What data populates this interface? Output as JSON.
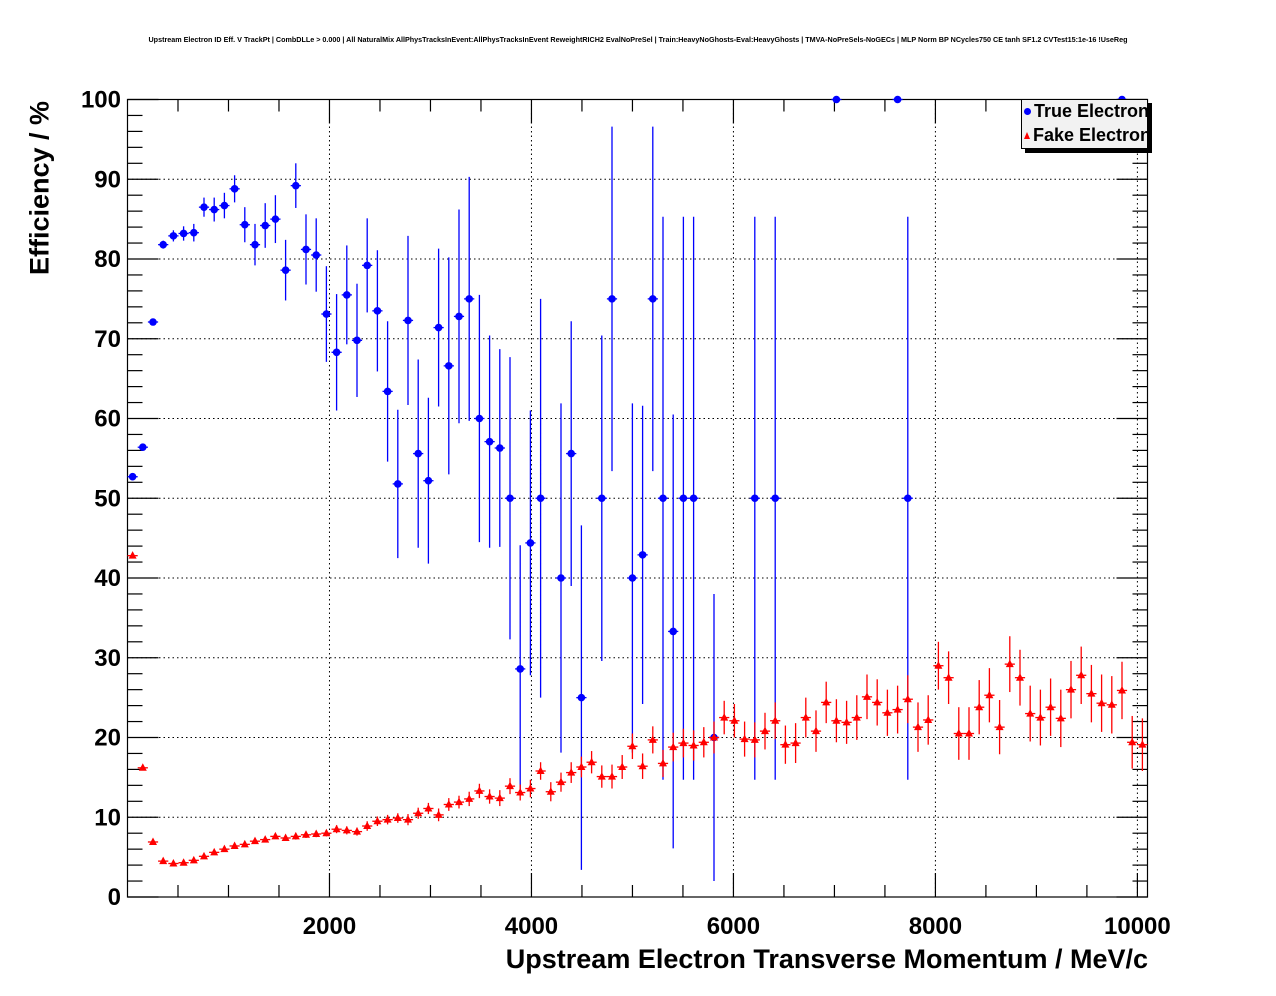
{
  "chart_data": {
    "type": "scatter",
    "title": "Upstream Electron ID Eff. V TrackPt | CombDLLe > 0.000 | All NaturalMix AllPhysTracksInEvent:AllPhysTracksInEvent ReweightRICH2 EvalNoPreSel | Train:HeavyNoGhosts-Eval:HeavyGhosts | TMVA-NoPreSels-NoGECs | MLP Norm BP NCycles750 CE tanh SF1.2 CVTest15:1e-16 !UseReg",
    "xlabel": "Upstream Electron Transverse Momentum / MeV/c",
    "ylabel": "Efficiency / %",
    "xlim": [
      0,
      10100
    ],
    "ylim": [
      0,
      100
    ],
    "bin_width": 101,
    "grid": true,
    "legend_position": "top-right",
    "x_ticks": [
      2000,
      4000,
      6000,
      8000,
      10000
    ],
    "x_tick_labels": [
      "2000",
      "4000",
      "6000",
      "8000",
      "10000"
    ],
    "y_ticks": [
      0,
      10,
      20,
      30,
      40,
      50,
      60,
      70,
      80,
      90,
      100
    ],
    "y_tick_labels": [
      "0",
      "10",
      "20",
      "30",
      "40",
      "50",
      "60",
      "70",
      "80",
      "90",
      "100"
    ],
    "series": [
      {
        "name": "True Electron",
        "color": "#0000ff",
        "marker": "circle",
        "bins": [
          0,
          1,
          2,
          3,
          4,
          5,
          6,
          7,
          8,
          9,
          10,
          11,
          12,
          13,
          14,
          15,
          16,
          17,
          18,
          19,
          20,
          21,
          22,
          23,
          24,
          25,
          26,
          27,
          28,
          29,
          30,
          31,
          32,
          33,
          34,
          35,
          36,
          37,
          38,
          39,
          40,
          42,
          43,
          44,
          46,
          47,
          49,
          50,
          51,
          52,
          53,
          54,
          55,
          57,
          61,
          63,
          69,
          75,
          76,
          97
        ],
        "values": [
          52.7,
          56.4,
          72.1,
          81.8,
          82.9,
          83.2,
          83.3,
          86.5,
          86.2,
          86.7,
          88.8,
          84.3,
          81.8,
          84.2,
          85.0,
          78.6,
          89.2,
          81.2,
          80.5,
          73.1,
          68.3,
          75.5,
          69.8,
          79.2,
          73.5,
          63.4,
          51.8,
          72.3,
          55.6,
          52.2,
          71.4,
          66.6,
          72.8,
          75.0,
          60.0,
          57.1,
          56.3,
          50.0,
          28.6,
          44.4,
          50.0,
          40.0,
          55.6,
          25.0,
          50.0,
          75.0,
          40.0,
          42.9,
          75.0,
          50.0,
          33.3,
          50.0,
          50.0,
          20.0,
          50.0,
          50.0,
          100,
          100,
          50.0,
          100
        ],
        "errors": [
          0.4,
          0.4,
          0.4,
          0.5,
          0.7,
          0.9,
          1.1,
          1.2,
          1.5,
          1.6,
          1.7,
          2.2,
          2.6,
          2.8,
          3.0,
          3.8,
          2.8,
          4.4,
          4.6,
          6.0,
          7.3,
          6.2,
          7.1,
          5.9,
          7.6,
          8.8,
          9.3,
          10.6,
          11.8,
          10.4,
          9.9,
          13.6,
          13.4,
          15.3,
          15.5,
          13.3,
          12.4,
          17.7,
          15.5,
          16.6,
          25.0,
          21.9,
          16.6,
          21.6,
          20.4,
          21.6,
          21.9,
          18.7,
          21.6,
          35.3,
          27.2,
          35.3,
          35.3,
          18.0,
          35.3,
          35.3,
          0,
          0,
          35.3,
          0
        ]
      },
      {
        "name": "Fake Electron",
        "color": "#ff0000",
        "marker": "triangle",
        "bins": [
          0,
          1,
          2,
          3,
          4,
          5,
          6,
          7,
          8,
          9,
          10,
          11,
          12,
          13,
          14,
          15,
          16,
          17,
          18,
          19,
          20,
          21,
          22,
          23,
          24,
          25,
          26,
          27,
          28,
          29,
          30,
          31,
          32,
          33,
          34,
          35,
          36,
          37,
          38,
          39,
          40,
          41,
          42,
          43,
          44,
          45,
          46,
          47,
          48,
          49,
          50,
          51,
          52,
          53,
          54,
          55,
          56,
          57,
          58,
          59,
          60,
          61,
          62,
          63,
          64,
          65,
          66,
          67,
          68,
          69,
          70,
          71,
          72,
          73,
          74,
          75,
          76,
          77,
          78,
          79,
          80,
          81,
          82,
          83,
          84,
          85,
          86,
          87,
          88,
          89,
          90,
          91,
          92,
          93,
          94,
          95,
          96,
          97,
          98,
          99
        ],
        "values": [
          42.8,
          16.2,
          6.9,
          4.5,
          4.2,
          4.3,
          4.6,
          5.1,
          5.6,
          6.0,
          6.4,
          6.6,
          7.0,
          7.2,
          7.6,
          7.4,
          7.6,
          7.8,
          7.9,
          8.0,
          8.5,
          8.35,
          8.2,
          8.9,
          9.5,
          9.7,
          9.9,
          9.7,
          10.5,
          11.1,
          10.3,
          11.6,
          11.9,
          12.3,
          13.3,
          12.6,
          12.4,
          13.9,
          13.1,
          13.6,
          15.8,
          13.2,
          14.4,
          15.6,
          16.3,
          16.9,
          15.1,
          15.1,
          16.3,
          18.9,
          16.4,
          19.7,
          16.75,
          18.8,
          19.3,
          19.0,
          19.4,
          20.0,
          22.5,
          22.1,
          19.8,
          19.7,
          20.8,
          22.1,
          19.1,
          19.3,
          22.5,
          20.8,
          24.4,
          22.1,
          21.9,
          22.5,
          25.1,
          24.4,
          23.1,
          23.5,
          24.8,
          21.3,
          22.2,
          29.0,
          27.5,
          20.5,
          20.5,
          23.8,
          25.3,
          21.3,
          29.2,
          27.5,
          23.0,
          22.5,
          23.8,
          22.4,
          26.0,
          27.8,
          25.5,
          24.3,
          24.1,
          25.9,
          19.4,
          19.1
        ],
        "errors": [
          0.3,
          0.3,
          0.3,
          0.3,
          0.3,
          0.3,
          0.3,
          0.3,
          0.3,
          0.3,
          0.3,
          0.3,
          0.3,
          0.3,
          0.3,
          0.3,
          0.4,
          0.4,
          0.4,
          0.4,
          0.5,
          0.5,
          0.5,
          0.6,
          0.6,
          0.6,
          0.6,
          0.7,
          0.7,
          0.7,
          0.8,
          0.8,
          0.8,
          0.9,
          0.9,
          0.9,
          1.0,
          1.0,
          1.0,
          1.1,
          1.1,
          1.2,
          1.2,
          1.3,
          1.3,
          1.4,
          1.4,
          1.5,
          1.5,
          1.6,
          1.6,
          1.7,
          1.7,
          1.8,
          1.8,
          1.9,
          1.9,
          2.0,
          2.1,
          2.1,
          2.2,
          2.2,
          2.3,
          2.3,
          2.4,
          2.5,
          2.5,
          2.6,
          2.6,
          2.7,
          2.7,
          2.8,
          2.8,
          2.9,
          2.9,
          3.0,
          3.0,
          3.1,
          3.1,
          3.0,
          3.3,
          3.3,
          3.3,
          3.4,
          3.4,
          3.4,
          3.5,
          3.5,
          3.5,
          3.5,
          3.6,
          3.6,
          3.6,
          3.6,
          3.6,
          3.6,
          3.6,
          3.6,
          3.3,
          3.3
        ]
      }
    ]
  }
}
